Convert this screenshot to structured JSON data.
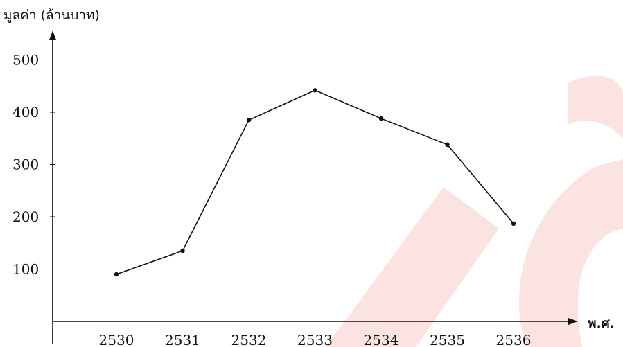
{
  "chart_data": {
    "type": "line",
    "title": "",
    "xlabel": "พ.ศ.",
    "ylabel": "มูลค่า (ล้านบาท)",
    "categories": [
      "2530",
      "2531",
      "2532",
      "2533",
      "2534",
      "2535",
      "2536"
    ],
    "y_ticks": [
      "100",
      "200",
      "300",
      "400",
      "500"
    ],
    "ylim": [
      0,
      500
    ],
    "series": [
      {
        "values": [
          90,
          135,
          385,
          442,
          388,
          338,
          187
        ]
      }
    ],
    "grid": false,
    "legend": "none",
    "colors": {
      "line": "#111111",
      "axis": "#111111",
      "watermark": "#f3c3c0"
    }
  }
}
